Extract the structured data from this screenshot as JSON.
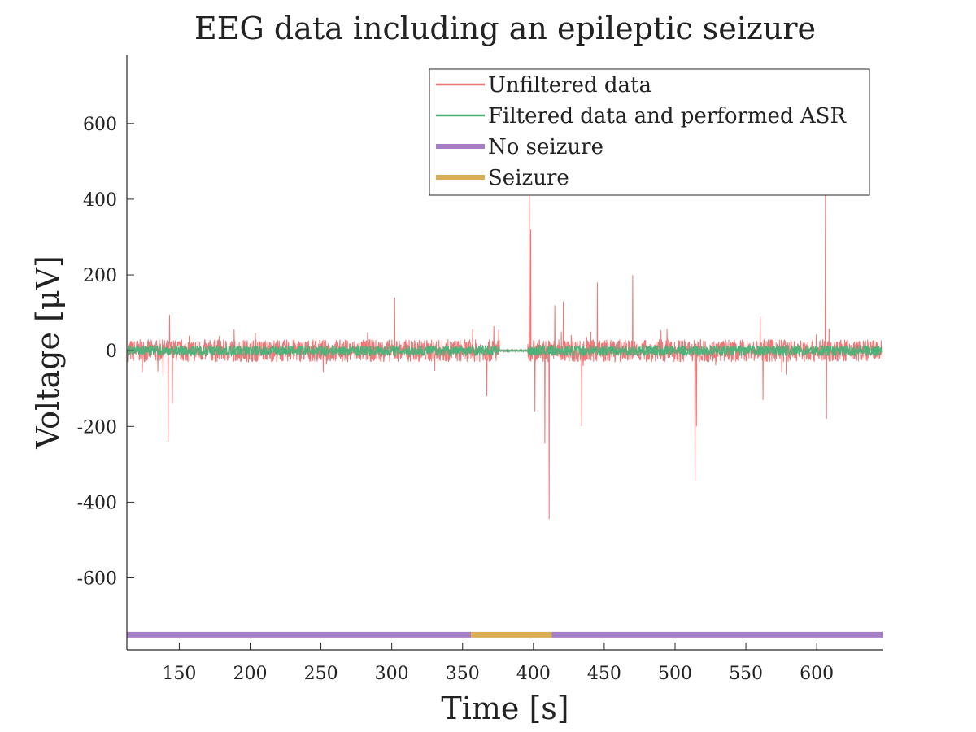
{
  "chart_data": {
    "type": "line",
    "title": "EEG data including an epileptic seizure",
    "xlabel": "Time [s]",
    "ylabel": "Voltage [μV]",
    "xlim": [
      113,
      647
    ],
    "ylim": [
      -790,
      780
    ],
    "xticks": [
      150,
      200,
      250,
      300,
      350,
      400,
      450,
      500,
      550,
      600
    ],
    "yticks": [
      -600,
      -400,
      -200,
      0,
      200,
      400,
      600
    ],
    "xtick_labels": [
      "150",
      "200",
      "250",
      "300",
      "350",
      "400",
      "450",
      "500",
      "550",
      "600"
    ],
    "ytick_labels": [
      "-600",
      "-400",
      "-200",
      "0",
      "200",
      "400",
      "600"
    ],
    "grid": false,
    "legend_position": "top-right",
    "series": [
      {
        "name": "Unfiltered data",
        "color": "#ee7777",
        "style": "noise",
        "typical_amplitude": 30,
        "peaks": [
          {
            "x": 142,
            "y": -240
          },
          {
            "x": 143,
            "y": 95
          },
          {
            "x": 145,
            "y": -140
          },
          {
            "x": 302,
            "y": 140
          },
          {
            "x": 367,
            "y": -120
          },
          {
            "x": 372,
            "y": 65
          },
          {
            "x": 397,
            "y": 415
          },
          {
            "x": 398,
            "y": 320
          },
          {
            "x": 401,
            "y": -160
          },
          {
            "x": 408,
            "y": -245
          },
          {
            "x": 411,
            "y": -445
          },
          {
            "x": 415,
            "y": 120
          },
          {
            "x": 421,
            "y": 130
          },
          {
            "x": 434,
            "y": -200
          },
          {
            "x": 445,
            "y": 180
          },
          {
            "x": 470,
            "y": 200
          },
          {
            "x": 514,
            "y": -345
          },
          {
            "x": 515,
            "y": -200
          },
          {
            "x": 560,
            "y": 90
          },
          {
            "x": 562,
            "y": -130
          },
          {
            "x": 606,
            "y": 415
          },
          {
            "x": 607,
            "y": -180
          }
        ],
        "quiet_interval": [
          376,
          396
        ]
      },
      {
        "name": "Filtered data and performed ASR",
        "color": "#4db37a",
        "style": "noise",
        "typical_amplitude": 14,
        "quiet_interval": [
          376,
          396
        ]
      },
      {
        "name": "No seizure",
        "color": "#a47fc4",
        "style": "band",
        "intervals": [
          [
            113,
            356
          ],
          [
            413,
            647
          ]
        ],
        "y": -750
      },
      {
        "name": "Seizure",
        "color": "#d8ae56",
        "style": "band",
        "intervals": [
          [
            356,
            413
          ]
        ],
        "y": -750
      }
    ]
  }
}
